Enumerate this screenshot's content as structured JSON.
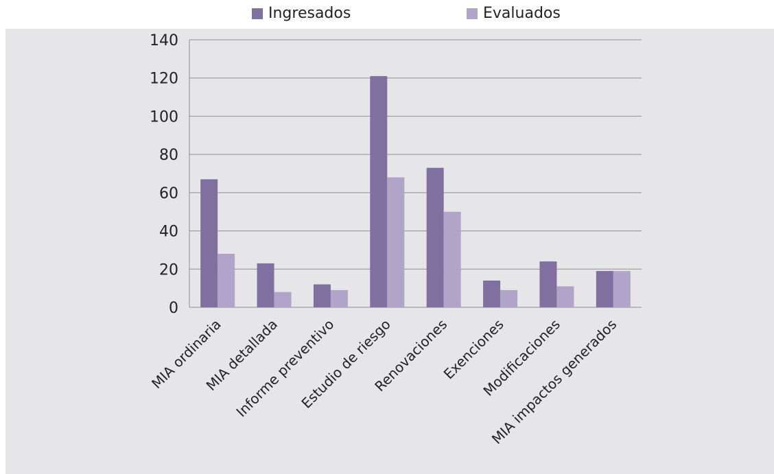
{
  "chart_data": {
    "type": "bar",
    "categories": [
      "MIA ordinaria",
      "MIA detallada",
      "Informe preventivo",
      "Estudio de riesgo",
      "Renovaciones",
      "Exenciones",
      "Modificaciones",
      "MIA impactos generados"
    ],
    "series": [
      {
        "name": "Ingresados",
        "color": "#8070a0",
        "values": [
          67,
          23,
          12,
          121,
          73,
          14,
          24,
          19
        ]
      },
      {
        "name": "Evaluados",
        "color": "#b0a5c8",
        "values": [
          28,
          8,
          9,
          68,
          50,
          9,
          11,
          19
        ]
      }
    ],
    "ylim": [
      0,
      140
    ],
    "yticks": [
      0,
      20,
      40,
      60,
      80,
      100,
      120,
      140
    ],
    "grid": true,
    "legend_position": "top",
    "title": "",
    "xlabel": "",
    "ylabel": ""
  }
}
